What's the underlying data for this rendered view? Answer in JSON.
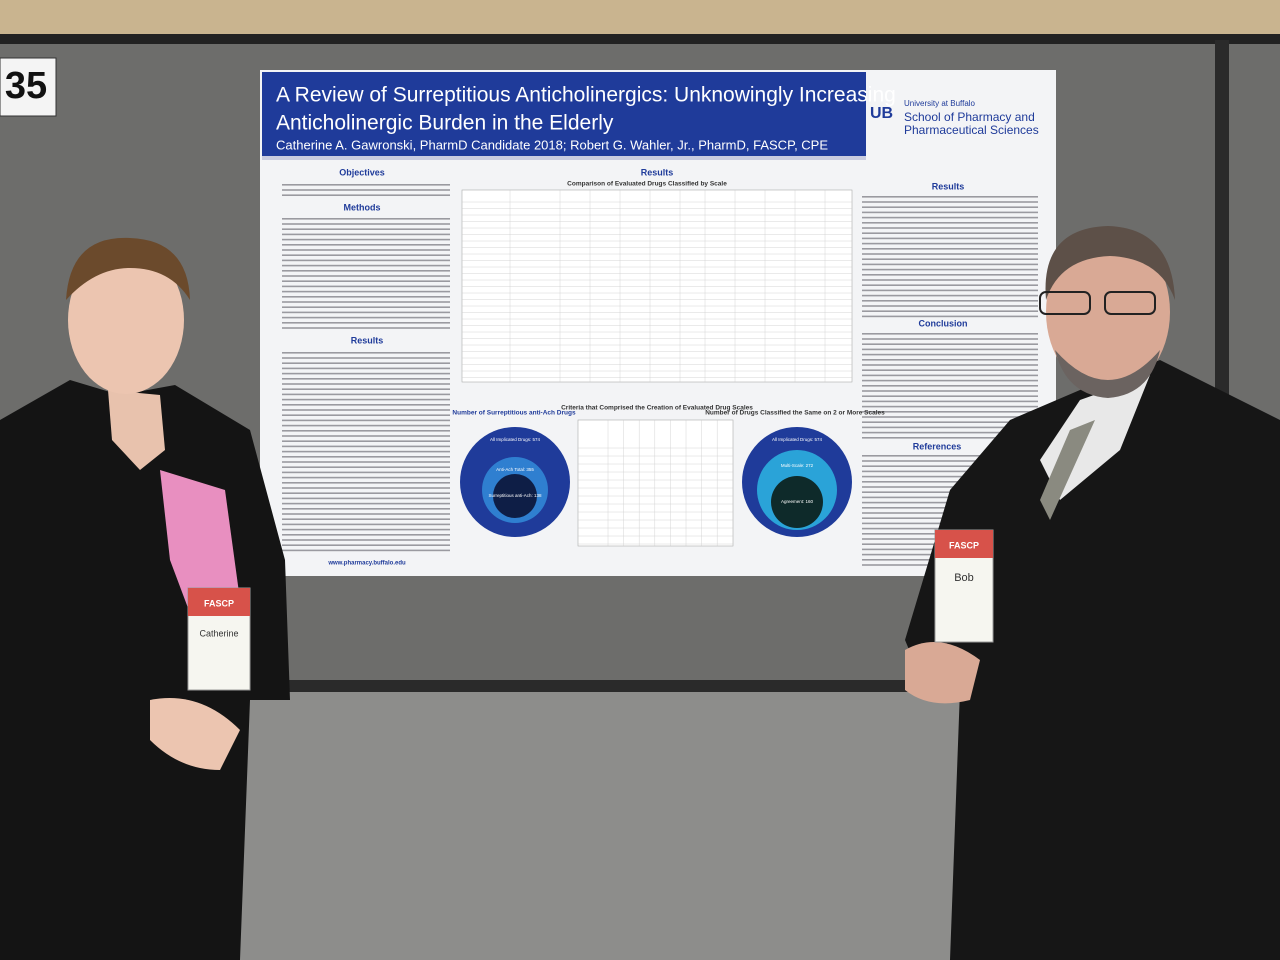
{
  "board_number": "35",
  "poster": {
    "title_lines": [
      "A Review of Surreptitious Anticholinergics: Unknowingly Increasing",
      "Anticholinergic Burden in the Elderly"
    ],
    "authors": "Catherine A. Gawronski, PharmD Candidate 2018; Robert G. Wahler, Jr., PharmD, FASCP, CPE",
    "logo": {
      "line1": "University at Buffalo",
      "line2": "School of Pharmacy and",
      "line3": "Pharmaceutical Sciences"
    },
    "left_column": {
      "objectives": "Objectives",
      "methods": "Methods",
      "results": "Results",
      "url": "www.pharmacy.buffalo.edu"
    },
    "middle_column": {
      "results": "Results",
      "table_title": "Comparison of Evaluated Drugs Classified by Scale",
      "figure_left_title": "Number of Surreptitious anti-Ach Drugs",
      "figure_middle_title": "Criteria that Comprised the Creation of Evaluated Drug Scales",
      "figure_right_title": "Number of Drugs Classified the Same on 2 or More Scales",
      "left_circles": [
        "All Implicated Drugs: 574",
        "Anti-Ach Total: 355",
        "Surreptitious anti-Ach: 138"
      ],
      "right_circles": [
        "All Implicated Drugs: 574",
        "Multi-Scale: 272",
        "Agreement: 160"
      ]
    },
    "right_column": {
      "results": "Results",
      "conclusion": "Conclusion",
      "references": "References"
    }
  },
  "badges": {
    "left": "Catherine",
    "right": "Bob",
    "org": "FASCP"
  }
}
